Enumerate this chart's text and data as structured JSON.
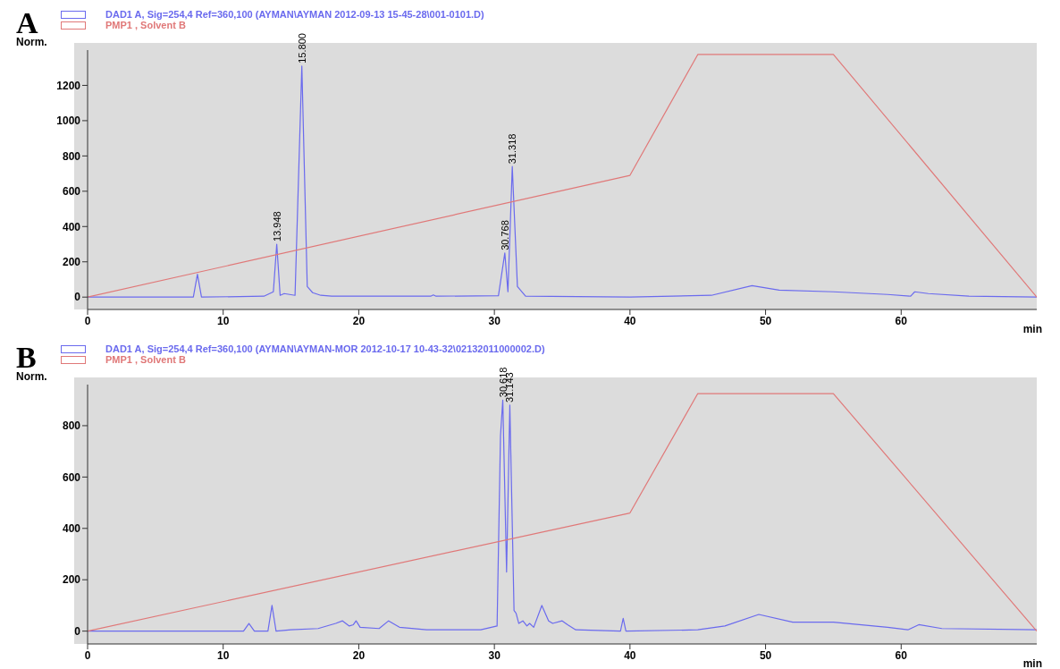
{
  "chart_data": [
    {
      "type": "line",
      "title": "A",
      "xlabel": "min",
      "ylabel": "Norm.",
      "xlim": [
        0,
        70
      ],
      "xticks": [
        0,
        10,
        20,
        30,
        40,
        50,
        60
      ],
      "ylim": [
        -70,
        1400
      ],
      "yticks": [
        0,
        200,
        400,
        600,
        800,
        1000,
        1200
      ],
      "grid": false,
      "legend": "top left",
      "marker": "none",
      "series": [
        {
          "name": "DAD1 A, Sig=254,4 Ref=360,100 (AYMAN\\AYMAN 2012-09-13 15-45-28\\001-0101.D)",
          "color": "#6a6aee",
          "x": [
            0,
            7.8,
            8.1,
            8.4,
            13,
            13.7,
            13.95,
            14.2,
            14.5,
            15.3,
            15.8,
            16.2,
            16.6,
            17.2,
            18,
            25.3,
            25.5,
            25.7,
            30.3,
            30.77,
            31.0,
            31.32,
            31.7,
            32.3,
            40,
            46,
            49,
            51,
            55,
            59,
            60.7,
            61,
            62,
            65,
            70
          ],
          "values": [
            0,
            0,
            130,
            0,
            5,
            30,
            300,
            10,
            20,
            10,
            1310,
            60,
            25,
            10,
            5,
            5,
            12,
            5,
            8,
            250,
            30,
            740,
            60,
            5,
            0,
            10,
            65,
            40,
            30,
            15,
            5,
            30,
            20,
            5,
            0
          ]
        },
        {
          "name": "PMP1 , Solvent B",
          "color": "#e07878",
          "x": [
            0,
            40,
            45,
            55,
            70
          ],
          "values": [
            0,
            690,
            1375,
            1375,
            0
          ]
        }
      ],
      "annotations": [
        {
          "text": "13.948",
          "x": 13.948,
          "y": 300
        },
        {
          "text": "15.800",
          "x": 15.8,
          "y": 1310
        },
        {
          "text": "30.768",
          "x": 30.768,
          "y": 250
        },
        {
          "text": "31.318",
          "x": 31.318,
          "y": 740
        }
      ]
    },
    {
      "type": "line",
      "title": "B",
      "xlabel": "min",
      "ylabel": "Norm.",
      "xlim": [
        0,
        70
      ],
      "xticks": [
        0,
        10,
        20,
        30,
        40,
        50,
        60
      ],
      "ylim": [
        -50,
        960
      ],
      "yticks": [
        0,
        200,
        400,
        600,
        800
      ],
      "grid": false,
      "legend": "top left",
      "marker": "none",
      "series": [
        {
          "name": "DAD1 A, Sig=254,4 Ref=360,100 (AYMAN\\AYMAN-MOR 2012-10-17 10-43-32\\02132011000002.D)",
          "color": "#6a6aee",
          "x": [
            0,
            11.5,
            11.9,
            12.3,
            13.3,
            13.6,
            13.9,
            15,
            17,
            18.3,
            18.8,
            19.3,
            19.6,
            19.8,
            20.1,
            21.5,
            22.2,
            23,
            25,
            29,
            30.2,
            30.45,
            30.62,
            30.9,
            31.14,
            31.45,
            31.6,
            31.8,
            32.1,
            32.4,
            32.6,
            32.9,
            33.5,
            34,
            34.3,
            35,
            35.4,
            36,
            39.3,
            39.5,
            39.7,
            45,
            47,
            49.5,
            52,
            55,
            59,
            60.5,
            61.3,
            63,
            70
          ],
          "values": [
            0,
            0,
            30,
            0,
            0,
            100,
            0,
            5,
            10,
            30,
            40,
            20,
            25,
            40,
            15,
            10,
            40,
            15,
            5,
            5,
            20,
            760,
            900,
            230,
            880,
            80,
            70,
            30,
            40,
            20,
            30,
            15,
            100,
            40,
            30,
            40,
            25,
            5,
            0,
            50,
            0,
            5,
            20,
            65,
            35,
            35,
            15,
            5,
            25,
            10,
            5
          ]
        },
        {
          "name": "PMP1 , Solvent B",
          "color": "#e07878",
          "x": [
            0,
            40,
            45,
            55,
            70
          ],
          "values": [
            0,
            460,
            925,
            925,
            0
          ]
        }
      ],
      "annotations": [
        {
          "text": "30.618",
          "x": 30.618,
          "y": 900
        },
        {
          "text": "31.143",
          "x": 31.143,
          "y": 880
        }
      ]
    }
  ]
}
